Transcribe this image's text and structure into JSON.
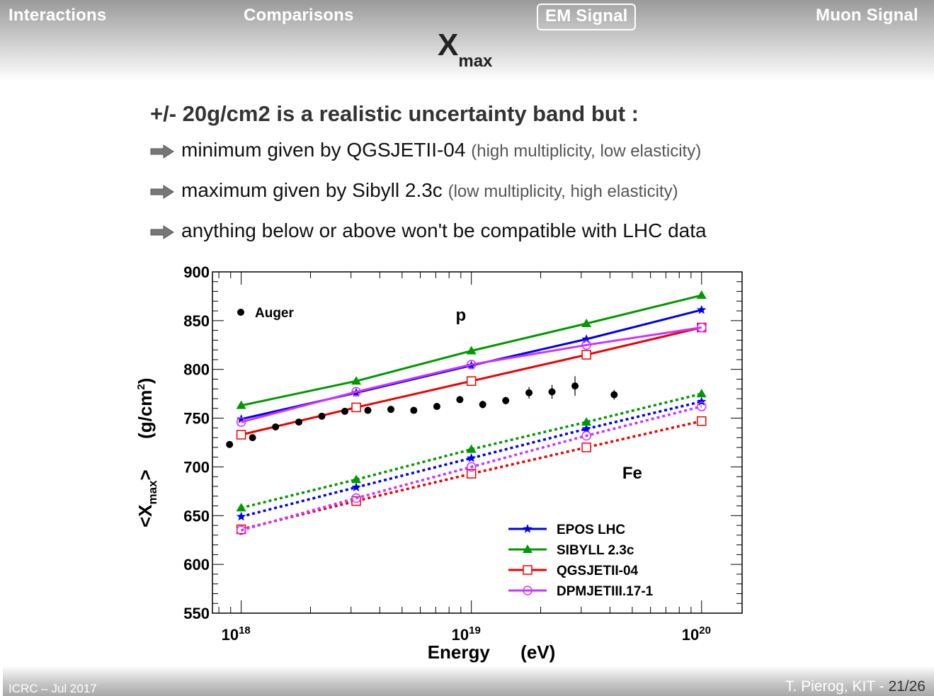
{
  "nav": {
    "items": [
      "Interactions",
      "Comparisons",
      "EM Signal",
      "Muon Signal"
    ],
    "active": "EM Signal"
  },
  "slide": {
    "title_main": "X",
    "title_sub": "max",
    "heading": "+/- 20g/cm2 is a realistic uncertainty band but :",
    "bullets": [
      {
        "text": "minimum given by QGSJETII-04",
        "note": "(high multiplicity, low elasticity)"
      },
      {
        "text": "maximum given by Sibyll 2.3c",
        "note": "(low multiplicity, high elasticity)"
      },
      {
        "text": "anything below or above won't be compatible with LHC data",
        "note": ""
      }
    ]
  },
  "footer": {
    "left": "ICRC – Jul 2017",
    "author": "T. Pierog, KIT - ",
    "page": "21/26"
  },
  "colors": {
    "epos": "#0000ee",
    "sibyll": "#009900",
    "qgsjet": "#ee0000",
    "dpmjet": "#cc33ff",
    "text_dark": "#222222"
  },
  "chart_data": {
    "type": "line",
    "xscale": "log",
    "xlim": [
      7.5e+17,
      1.5e+20
    ],
    "ylim": [
      550,
      900
    ],
    "xlabel": "Energy      (eV)",
    "ylabel_main": "<X",
    "ylabel_sub": "max",
    "ylabel_rest": ">      (g/cm",
    "ylabel_sup": "2",
    "ylabel_end": ")",
    "yticks": [
      550,
      600,
      650,
      700,
      750,
      800,
      850,
      900
    ],
    "xticks": [
      {
        "value": 1e+18,
        "base": "10",
        "exp": "18"
      },
      {
        "value": 1e+19,
        "base": "10",
        "exp": "19"
      },
      {
        "value": 1e+20,
        "base": "10",
        "exp": "20"
      }
    ],
    "annotations": [
      {
        "text": "p",
        "x": 9e+18,
        "y": 850
      },
      {
        "text": "Fe",
        "x": 5e+19,
        "y": 688
      }
    ],
    "x": [
      1e+18,
      3.16e+18,
      1e+19,
      3.16e+19,
      1e+20
    ],
    "series": [
      {
        "name": "EPOS LHC",
        "color_key": "epos",
        "marker": "star",
        "p": [
          749,
          776,
          804,
          831,
          861
        ],
        "fe": [
          649,
          679,
          709,
          739,
          767
        ]
      },
      {
        "name": "SIBYLL 2.3c",
        "color_key": "sibyll",
        "marker": "triangle",
        "p": [
          763,
          788,
          819,
          847,
          876
        ],
        "fe": [
          658,
          687,
          718,
          746,
          775
        ]
      },
      {
        "name": "QGSJETII-04",
        "color_key": "qgsjet",
        "marker": "square",
        "p": [
          733,
          761,
          788,
          815,
          843
        ],
        "fe": [
          636,
          665,
          693,
          720,
          747
        ]
      },
      {
        "name": "DPMJETIII.17-1",
        "color_key": "dpmjet",
        "marker": "circle",
        "p": [
          746,
          777,
          805,
          825,
          843
        ],
        "fe": [
          635,
          668,
          700,
          732,
          762
        ]
      }
    ],
    "auger": {
      "name": "Auger",
      "points": [
        {
          "x": 8.9e+17,
          "y": 723,
          "err": 3
        },
        {
          "x": 1.12e+18,
          "y": 730,
          "err": 3
        },
        {
          "x": 1.41e+18,
          "y": 741,
          "err": 3
        },
        {
          "x": 1.78e+18,
          "y": 746,
          "err": 3
        },
        {
          "x": 2.24e+18,
          "y": 752,
          "err": 3
        },
        {
          "x": 2.82e+18,
          "y": 757,
          "err": 3
        },
        {
          "x": 3.55e+18,
          "y": 758,
          "err": 3
        },
        {
          "x": 4.47e+18,
          "y": 759,
          "err": 3
        },
        {
          "x": 5.62e+18,
          "y": 758,
          "err": 3
        },
        {
          "x": 7.08e+18,
          "y": 762,
          "err": 3
        },
        {
          "x": 8.91e+18,
          "y": 769,
          "err": 3
        },
        {
          "x": 1.12e+19,
          "y": 764,
          "err": 4
        },
        {
          "x": 1.41e+19,
          "y": 768,
          "err": 4
        },
        {
          "x": 1.78e+19,
          "y": 776,
          "err": 6
        },
        {
          "x": 2.24e+19,
          "y": 777,
          "err": 7
        },
        {
          "x": 2.82e+19,
          "y": 783,
          "err": 10
        },
        {
          "x": 4.17e+19,
          "y": 774,
          "err": 5
        }
      ]
    }
  }
}
